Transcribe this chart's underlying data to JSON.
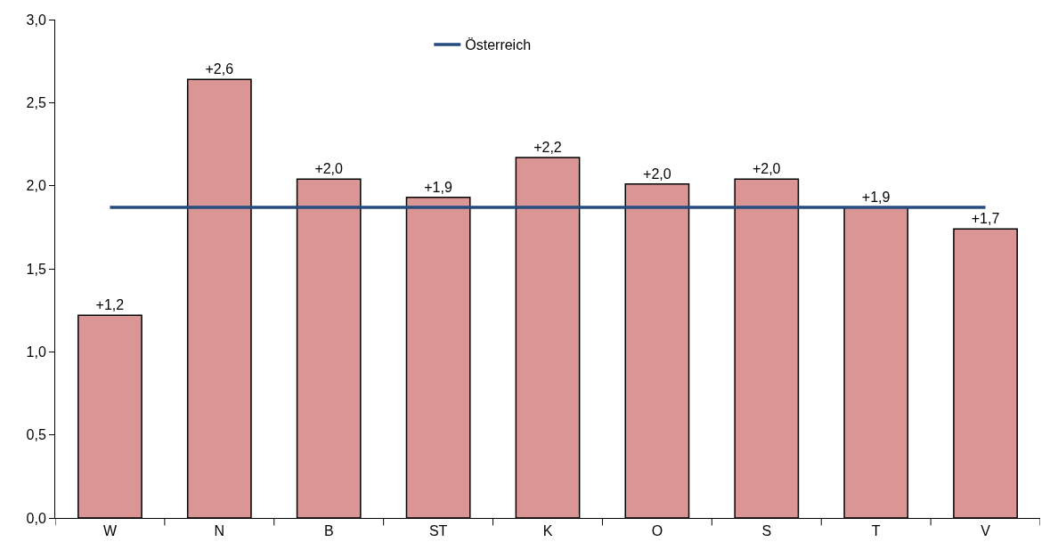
{
  "chart_data": {
    "type": "bar",
    "categories": [
      "W",
      "N",
      "B",
      "ST",
      "K",
      "O",
      "S",
      "T",
      "V"
    ],
    "series": [
      {
        "color": "#d99694",
        "values": [
          1.22,
          2.64,
          2.04,
          1.93,
          2.17,
          2.01,
          2.04,
          1.87,
          1.74
        ],
        "value_labels": [
          "+1,2",
          "+2,6",
          "+2,0",
          "+1,9",
          "+2,2",
          "+2,0",
          "+2,0",
          "+1,9",
          "+1,7"
        ]
      },
      {
        "type": "line",
        "name": "Österreich",
        "color": "#264b7f",
        "values": [
          1.87,
          1.87,
          1.87,
          1.87,
          1.87,
          1.87,
          1.87,
          1.87,
          1.87
        ]
      }
    ],
    "ylim": [
      0,
      3
    ],
    "yticks": [
      {
        "value": 0,
        "label": "0,0"
      },
      {
        "value": 0.5,
        "label": "0,5"
      },
      {
        "value": 1,
        "label": "1,0"
      },
      {
        "value": 1.5,
        "label": "1,5"
      },
      {
        "value": 2,
        "label": "2,0"
      },
      {
        "value": 2.5,
        "label": "2,5"
      },
      {
        "value": 3,
        "label": "3,0"
      }
    ],
    "grid": false,
    "legend": "top",
    "marker": "none",
    "line_style": "solid"
  }
}
